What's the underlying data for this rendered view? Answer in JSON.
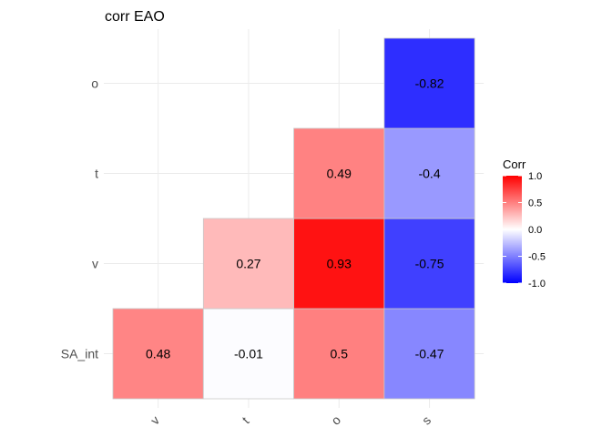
{
  "chart_data": {
    "type": "heatmap",
    "title": "corr EAO",
    "x_categories": [
      "v",
      "t",
      "o",
      "s"
    ],
    "y_categories": [
      "SA_int",
      "v",
      "t",
      "o"
    ],
    "cells": [
      {
        "x": "v",
        "y": "SA_int",
        "value": 0.48,
        "label": "0.48"
      },
      {
        "x": "t",
        "y": "SA_int",
        "value": -0.01,
        "label": "-0.01"
      },
      {
        "x": "o",
        "y": "SA_int",
        "value": 0.5,
        "label": "0.5"
      },
      {
        "x": "s",
        "y": "SA_int",
        "value": -0.47,
        "label": "-0.47"
      },
      {
        "x": "t",
        "y": "v",
        "value": 0.27,
        "label": "0.27"
      },
      {
        "x": "o",
        "y": "v",
        "value": 0.93,
        "label": "0.93"
      },
      {
        "x": "s",
        "y": "v",
        "value": -0.75,
        "label": "-0.75"
      },
      {
        "x": "o",
        "y": "t",
        "value": 0.49,
        "label": "0.49"
      },
      {
        "x": "s",
        "y": "t",
        "value": -0.4,
        "label": "-0.4"
      },
      {
        "x": "s",
        "y": "o",
        "value": -0.82,
        "label": "-0.82"
      }
    ],
    "legend": {
      "title": "Corr",
      "placement": "right",
      "range": [
        -1,
        1
      ],
      "ticks": [
        1.0,
        0.5,
        0.0,
        -0.5,
        -1.0
      ],
      "tick_labels": [
        "1.0",
        "0.5",
        "0.0",
        "-0.5",
        "-1.0"
      ],
      "low_color": "#0000ff",
      "mid_color": "#ffffff",
      "high_color": "#ff0000"
    },
    "grid": true
  }
}
